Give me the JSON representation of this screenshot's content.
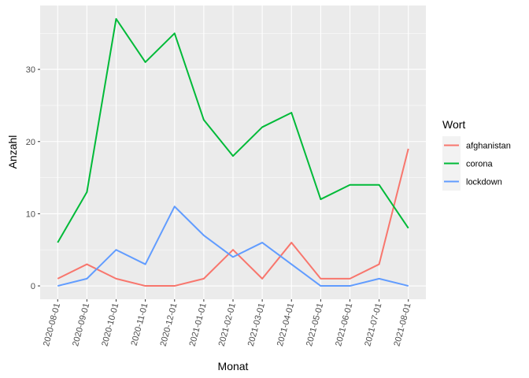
{
  "chart_data": {
    "type": "line",
    "xlabel": "Monat",
    "ylabel": "Anzahl",
    "categories": [
      "2020-08-01",
      "2020-09-01",
      "2020-10-01",
      "2020-11-01",
      "2020-12-01",
      "2021-01-01",
      "2021-02-01",
      "2021-03-01",
      "2021-04-01",
      "2021-05-01",
      "2021-06-01",
      "2021-07-01",
      "2021-08-01"
    ],
    "ylim": [
      -1.85,
      38.85
    ],
    "yticks": [
      0,
      10,
      20,
      30
    ],
    "grid": true,
    "legend": {
      "title": "Wort",
      "placement": "right"
    },
    "series": [
      {
        "name": "afghanistan",
        "color": "#F8766D",
        "values": [
          1,
          3,
          1,
          0,
          0,
          1,
          5,
          1,
          6,
          1,
          1,
          3,
          19
        ]
      },
      {
        "name": "corona",
        "color": "#00BA38",
        "values": [
          6,
          13,
          37,
          31,
          35,
          23,
          18,
          22,
          24,
          12,
          14,
          14,
          8
        ]
      },
      {
        "name": "lockdown",
        "color": "#619CFF",
        "values": [
          0,
          1,
          5,
          3,
          11,
          7,
          4,
          6,
          3,
          0,
          0,
          1,
          0
        ]
      }
    ]
  }
}
